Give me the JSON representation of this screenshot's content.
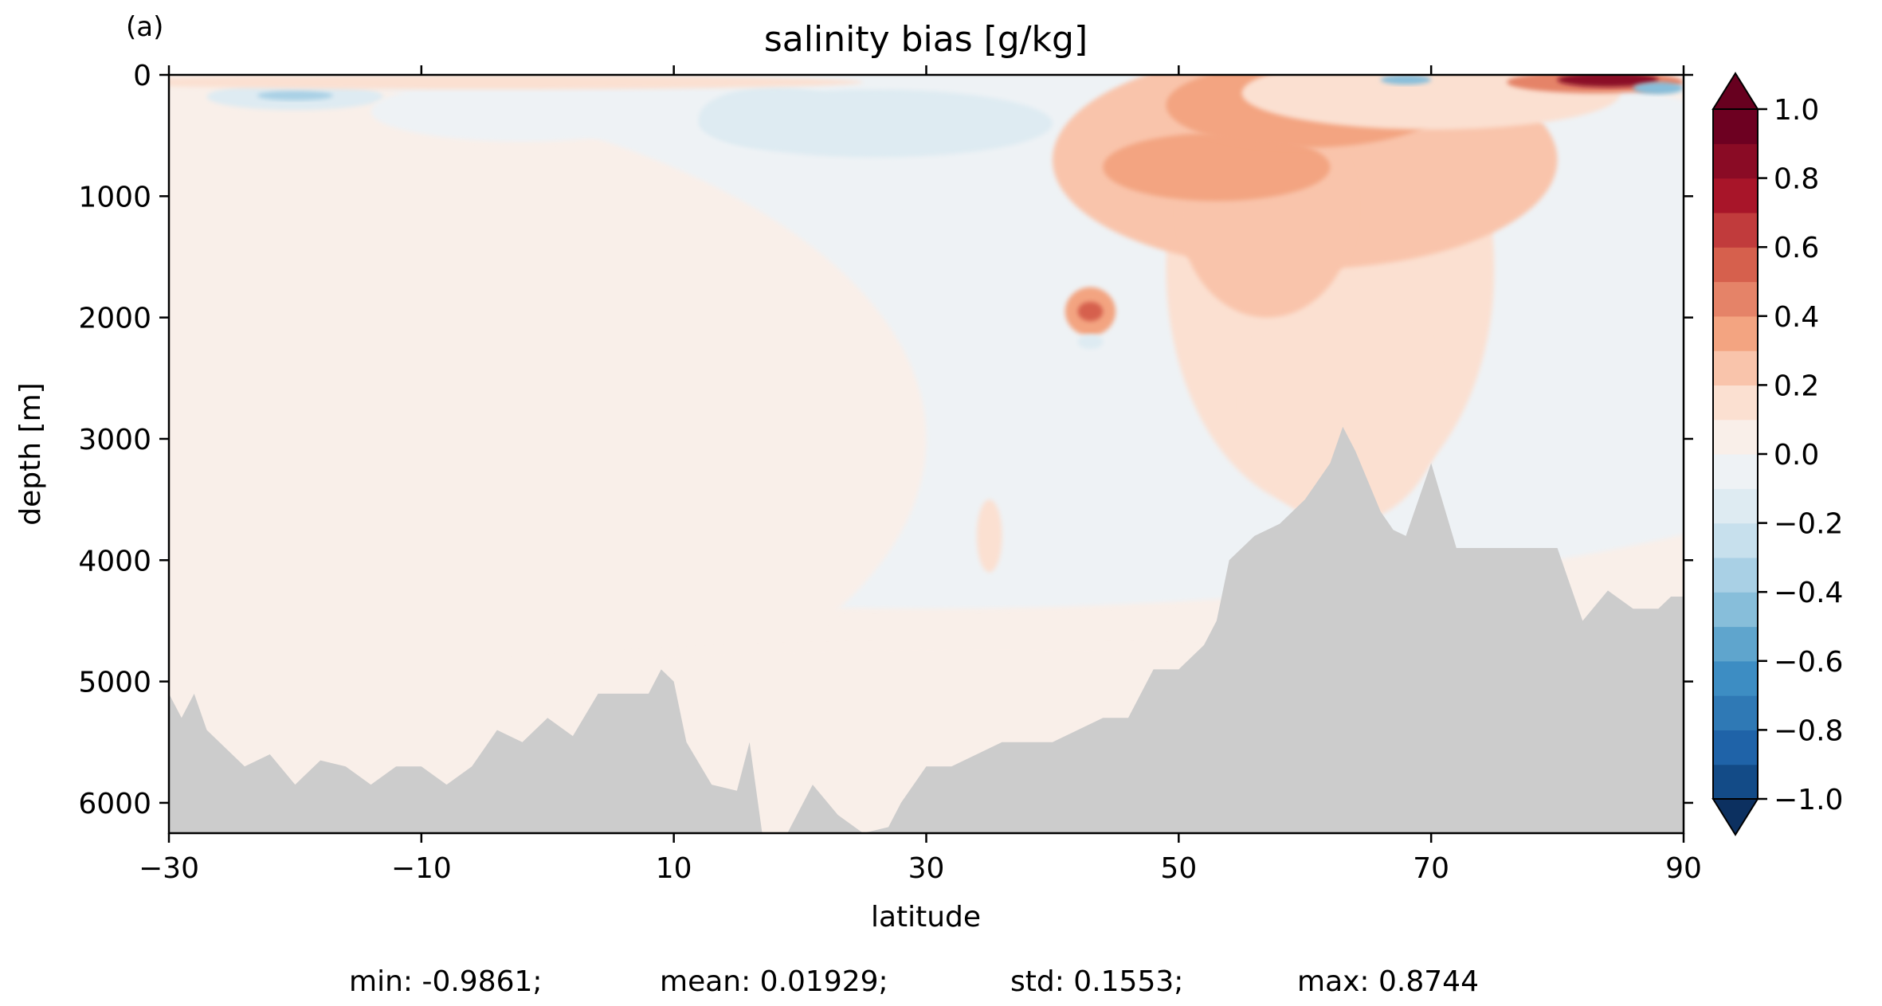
{
  "panel_label": "(a)",
  "chart_data": {
    "type": "heatmap",
    "title": "salinity bias [g/kg]",
    "xlabel": "latitude",
    "ylabel": "depth [m]",
    "xlim": [
      -30,
      90
    ],
    "ylim": [
      6250,
      0
    ],
    "y_inverted": true,
    "x_ticks": [
      -30,
      -10,
      10,
      30,
      50,
      70,
      90
    ],
    "x_tick_labels": [
      "−30",
      "−10",
      "10",
      "30",
      "50",
      "70",
      "90"
    ],
    "y_ticks": [
      0,
      1000,
      2000,
      3000,
      4000,
      5000,
      6000
    ],
    "y_tick_labels": [
      "0",
      "1000",
      "2000",
      "3000",
      "4000",
      "5000",
      "6000"
    ],
    "colorbar": {
      "levels": [
        -1.0,
        -0.9,
        -0.8,
        -0.7,
        -0.6,
        -0.5,
        -0.4,
        -0.3,
        -0.2,
        -0.1,
        0.0,
        0.1,
        0.2,
        0.3,
        0.4,
        0.5,
        0.6,
        0.7,
        0.8,
        0.9,
        1.0
      ],
      "tick_values": [
        1.0,
        0.8,
        0.6,
        0.4,
        0.2,
        0.0,
        -0.2,
        -0.4,
        -0.6,
        -0.8,
        -1.0
      ],
      "tick_labels": [
        "1.0",
        "0.8",
        "0.6",
        "0.4",
        "0.2",
        "0.0",
        "−0.2",
        "−0.4",
        "−0.6",
        "−0.8",
        "−1.0"
      ],
      "extend": "both",
      "colors": [
        "#134b87",
        "#1f63a8",
        "#2f79b5",
        "#3d8dc3",
        "#5fa5cd",
        "#87beda",
        "#a9d0e5",
        "#c7e0ed",
        "#deebf2",
        "#eef2f5",
        "#f9efe9",
        "#fbe0d1",
        "#f9c4ab",
        "#f3a481",
        "#e58368",
        "#d6604d",
        "#c13b3c",
        "#a81529",
        "#8a0b25",
        "#6d0021"
      ],
      "under_color": "#0c3060",
      "over_color": "#67001f"
    },
    "land_color": "#cccccc",
    "bathymetry": {
      "lat": [
        -30,
        -29,
        -28,
        -27,
        -25,
        -24,
        -22,
        -20,
        -18,
        -16,
        -14,
        -12,
        -10,
        -8,
        -6,
        -4,
        -2,
        0,
        2,
        4,
        6,
        8,
        9,
        10,
        11,
        13,
        15,
        16,
        17,
        18,
        19,
        21,
        23,
        25,
        27,
        28,
        30,
        32,
        34,
        36,
        38,
        40,
        42,
        44,
        46,
        48,
        50,
        52,
        53,
        54,
        56,
        58,
        60,
        62,
        63,
        64,
        66,
        67,
        68,
        70,
        72,
        74,
        75,
        76,
        78,
        80,
        81,
        82,
        84,
        86,
        88,
        89,
        90
      ],
      "depth": [
        5100,
        5300,
        5100,
        5400,
        5600,
        5700,
        5600,
        5850,
        5650,
        5700,
        5850,
        5700,
        5700,
        5850,
        5700,
        5400,
        5500,
        5300,
        5450,
        5100,
        5100,
        5100,
        4900,
        5000,
        5500,
        5850,
        5900,
        5500,
        6250,
        6250,
        6250,
        5850,
        6100,
        6250,
        6200,
        6000,
        5700,
        5700,
        5600,
        5500,
        5500,
        5500,
        5400,
        5300,
        5300,
        4900,
        4900,
        4700,
        4500,
        4000,
        3800,
        3700,
        3500,
        3200,
        2900,
        3100,
        3600,
        3750,
        3800,
        3200,
        3900,
        3900,
        3900,
        3900,
        3900,
        3900,
        4200,
        4500,
        4250,
        4400,
        4400,
        4300,
        4300
      ]
    },
    "anomalies": [
      {
        "lat": 30,
        "depth": 2000,
        "rx": 90,
        "ry": 2400,
        "value": -0.05
      },
      {
        "lat": -30,
        "depth": 3000,
        "rx": 60,
        "ry": 3000,
        "value": 0.05
      },
      {
        "lat": 62,
        "depth": 1600,
        "rx": 13,
        "ry": 2000,
        "value": 0.15
      },
      {
        "lat": 63,
        "depth": 2700,
        "rx": 8,
        "ry": 1000,
        "value": 0.15
      },
      {
        "lat": 60,
        "depth": 700,
        "rx": 20,
        "ry": 900,
        "value": 0.25
      },
      {
        "lat": 57,
        "depth": 1100,
        "rx": 7,
        "ry": 900,
        "value": 0.25
      },
      {
        "lat": 53,
        "depth": 760,
        "rx": 9,
        "ry": 280,
        "value": 0.35
      },
      {
        "lat": 60,
        "depth": 250,
        "rx": 11,
        "ry": 350,
        "value": 0.35
      },
      {
        "lat": 70,
        "depth": 150,
        "rx": 15,
        "ry": 300,
        "value": 0.15
      },
      {
        "lat": 83,
        "depth": 60,
        "rx": 7,
        "ry": 90,
        "value": 0.45
      },
      {
        "lat": 84,
        "depth": 40,
        "rx": 4,
        "ry": 60,
        "value": 0.8
      },
      {
        "lat": 88,
        "depth": 110,
        "rx": 2,
        "ry": 50,
        "value": -0.45
      },
      {
        "lat": 68,
        "depth": 40,
        "rx": 2,
        "ry": 40,
        "value": -0.5
      },
      {
        "lat": 43,
        "depth": 1950,
        "rx": 2,
        "ry": 200,
        "value": 0.35
      },
      {
        "lat": 43,
        "depth": 1950,
        "rx": 1,
        "ry": 80,
        "value": 0.55
      },
      {
        "lat": 43,
        "depth": 2200,
        "rx": 1,
        "ry": 60,
        "value": -0.2
      },
      {
        "lat": 26,
        "depth": 400,
        "rx": 14,
        "ry": 280,
        "value": -0.15
      },
      {
        "lat": 18,
        "depth": 350,
        "rx": 6,
        "ry": 250,
        "value": -0.2
      },
      {
        "lat": -20,
        "depth": 180,
        "rx": 7,
        "ry": 110,
        "value": -0.2
      },
      {
        "lat": -20,
        "depth": 170,
        "rx": 3,
        "ry": 40,
        "value": -0.35
      },
      {
        "lat": -2,
        "depth": 300,
        "rx": 12,
        "ry": 250,
        "value": -0.1
      },
      {
        "lat": 28,
        "depth": 1250,
        "rx": 3,
        "ry": 160,
        "value": -0.1
      },
      {
        "lat": 35,
        "depth": 3800,
        "rx": 1,
        "ry": 300,
        "value": 0.15
      },
      {
        "lat": -5,
        "depth": 60,
        "rx": 30,
        "ry": 60,
        "value": 0.1
      },
      {
        "lat": 35,
        "depth": 5600,
        "rx": 70,
        "ry": 900,
        "value": 0.05
      }
    ],
    "stats_text": {
      "min": "min: -0.9861;",
      "mean": "mean: 0.01929;",
      "std": "std: 0.1553;",
      "max": "max: 0.8744"
    }
  }
}
